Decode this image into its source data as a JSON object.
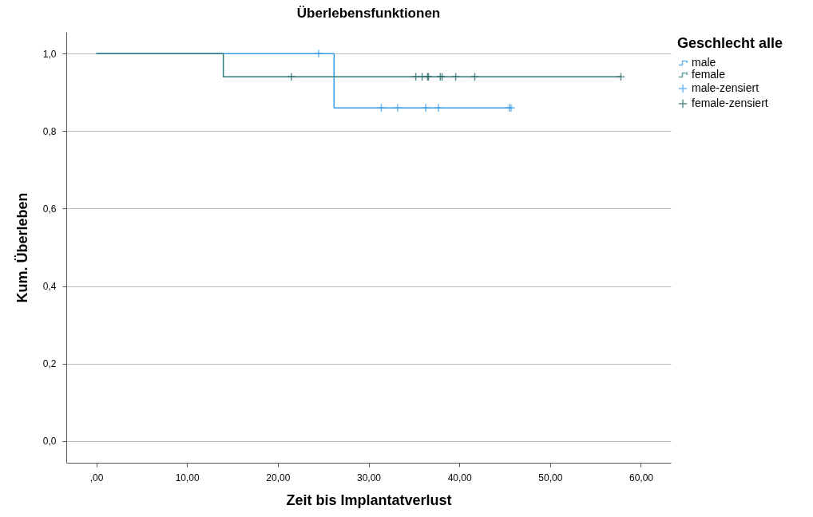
{
  "chart_data": {
    "type": "line",
    "title": "Überlebensfunktionen",
    "xlabel": "Zeit bis Implantatverlust",
    "ylabel": "Kum. Überleben",
    "legend_title": "Geschlecht alle",
    "xlim": [
      -3.3,
      63.3
    ],
    "xticks": [
      {
        "value": 0,
        "label": ",00"
      },
      {
        "value": 10,
        "label": "10,00"
      },
      {
        "value": 20,
        "label": "20,00"
      },
      {
        "value": 30,
        "label": "30,00"
      },
      {
        "value": 40,
        "label": "40,00"
      },
      {
        "value": 50,
        "label": "50,00"
      },
      {
        "value": 60,
        "label": "60,00"
      }
    ],
    "ylim": [
      -0.056,
      1.056
    ],
    "yticks": [
      {
        "value": 0,
        "label": "0,0"
      },
      {
        "value": 0.2,
        "label": "0,2"
      },
      {
        "value": 0.4,
        "label": "0,4"
      },
      {
        "value": 0.6,
        "label": "0,6"
      },
      {
        "value": 0.8,
        "label": "0,8"
      },
      {
        "value": 1,
        "label": "1,0"
      }
    ],
    "grid": "y",
    "legend": "right",
    "series": [
      {
        "name": "male",
        "type": "step",
        "color": "#3399e6",
        "x": [
          0,
          26.2,
          45.7
        ],
        "values": [
          1,
          0.86,
          0.86
        ]
      },
      {
        "name": "female",
        "type": "step",
        "color": "#2e7d7a",
        "x": [
          0,
          14.0,
          57.8
        ],
        "values": [
          1,
          0.94,
          0.94
        ]
      },
      {
        "name": "male-zensiert",
        "type": "scatter",
        "marker": "cross",
        "color": "#3399e6",
        "x": [
          24.5,
          31.4,
          33.2,
          36.3,
          37.7,
          45.5,
          45.7
        ],
        "values": [
          1,
          0.86,
          0.86,
          0.86,
          0.86,
          0.86,
          0.86
        ]
      },
      {
        "name": "female-zensiert",
        "type": "scatter",
        "marker": "cross",
        "color": "#1f5f5c",
        "x": [
          21.5,
          35.2,
          35.9,
          36.5,
          36.6,
          37.9,
          38.1,
          39.6,
          41.7,
          57.8
        ],
        "values": [
          0.94,
          0.94,
          0.94,
          0.94,
          0.94,
          0.94,
          0.94,
          0.94,
          0.94,
          0.94
        ]
      }
    ]
  }
}
